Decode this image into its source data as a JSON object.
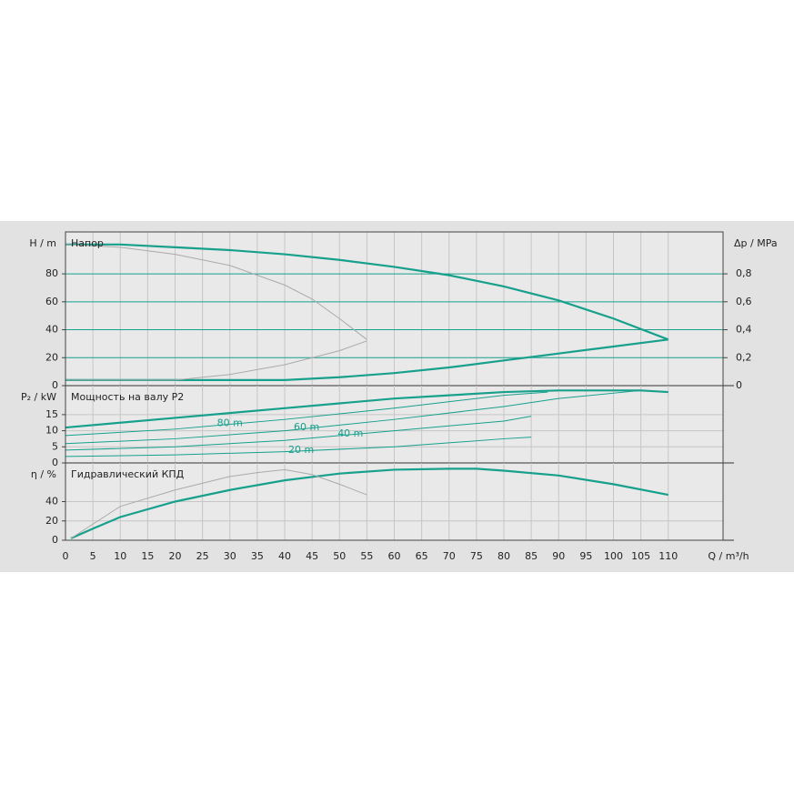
{
  "chart_data": [
    {
      "type": "line",
      "title": "Напор",
      "ylabel": "H / m",
      "y2label": "Δp / MPa",
      "xlim": [
        0,
        120
      ],
      "ylim": [
        0,
        110
      ],
      "yticks": [
        0,
        20,
        40,
        60,
        80
      ],
      "y2lim": [
        0,
        1.1
      ],
      "y2ticks": [
        0,
        {
          "value": 0.2,
          "label": "0,2"
        },
        {
          "value": 0.4,
          "label": "0,4"
        },
        {
          "value": 0.6,
          "label": "0,6"
        },
        {
          "value": 0.8,
          "label": "0,8"
        }
      ],
      "grid": true,
      "grid_color": "#17a08c",
      "series": [
        {
          "color": "#17a08c",
          "line_width": 2.2,
          "x": [
            0,
            10,
            20,
            30,
            40,
            50,
            60,
            65,
            70,
            80,
            90,
            100,
            110
          ],
          "values": [
            101,
            101,
            99,
            97,
            94,
            90,
            85,
            82,
            79,
            71,
            61,
            48,
            33
          ]
        },
        {
          "color": "#17a08c",
          "line_width": 2.2,
          "x": [
            0,
            20,
            40,
            50,
            60,
            70,
            80,
            90,
            100,
            110
          ],
          "values": [
            4,
            4,
            4,
            6,
            9,
            13,
            18,
            23,
            28,
            33
          ]
        },
        {
          "color": "#aaaaaa",
          "line_width": 1,
          "x": [
            0,
            10,
            20,
            30,
            40,
            45,
            50,
            55
          ],
          "values": [
            101,
            99,
            94,
            86,
            72,
            62,
            48,
            33
          ]
        },
        {
          "color": "#aaaaaa",
          "line_width": 1,
          "x": [
            0,
            20,
            30,
            40,
            50,
            55
          ],
          "values": [
            4,
            4,
            8,
            15,
            25,
            32
          ]
        }
      ]
    },
    {
      "type": "line",
      "title": "Мощность на валу P2",
      "ylabel": "P₂ / kW",
      "xlim": [
        0,
        120
      ],
      "ylim": [
        0,
        24
      ],
      "yticks": [
        0,
        5,
        10,
        15
      ],
      "grid": true,
      "series": [
        {
          "color": "#17a08c",
          "line_width": 2.2,
          "x": [
            0,
            10,
            20,
            30,
            40,
            50,
            60,
            70,
            80,
            90,
            105,
            110
          ],
          "values": [
            11,
            12.5,
            14,
            15.5,
            17,
            18.5,
            20,
            21,
            22,
            22.5,
            22.5,
            22
          ]
        },
        {
          "name": "80 m",
          "color": "#17a08c",
          "line_width": 1,
          "x": [
            0,
            20,
            40,
            60,
            80,
            88
          ],
          "values": [
            8.5,
            10.5,
            13.5,
            17,
            21,
            22
          ]
        },
        {
          "name": "60 m",
          "color": "#17a08c",
          "line_width": 1,
          "x": [
            0,
            20,
            40,
            60,
            80,
            90,
            105
          ],
          "values": [
            6,
            7.5,
            10,
            13.5,
            17.5,
            20,
            22.5
          ]
        },
        {
          "name": "40 m",
          "color": "#17a08c",
          "line_width": 1,
          "x": [
            0,
            20,
            40,
            60,
            80,
            85
          ],
          "values": [
            4,
            5,
            7,
            10,
            13,
            14.5
          ]
        },
        {
          "name": "20 m",
          "color": "#17a08c",
          "line_width": 1,
          "x": [
            0,
            20,
            40,
            60,
            80,
            85
          ],
          "values": [
            2,
            2.5,
            3.5,
            5,
            7.5,
            8
          ]
        }
      ]
    },
    {
      "type": "line",
      "title": "Гидравлический КПД",
      "ylabel": "η / %",
      "xlabel": "Q / m³/h",
      "xlim": [
        0,
        120
      ],
      "ylim": [
        0,
        80
      ],
      "yticks": [
        0,
        20,
        40
      ],
      "grid": true,
      "xticks": [
        0,
        5,
        10,
        15,
        20,
        25,
        30,
        35,
        40,
        45,
        50,
        55,
        60,
        65,
        70,
        75,
        80,
        85,
        90,
        95,
        100,
        105,
        110
      ],
      "series": [
        {
          "color": "#17a08c",
          "line_width": 2.2,
          "x": [
            1,
            5,
            10,
            20,
            30,
            40,
            50,
            60,
            70,
            75,
            80,
            90,
            100,
            110
          ],
          "values": [
            2,
            12,
            24,
            40,
            52,
            62,
            69,
            73,
            74,
            74,
            72,
            67,
            58,
            47
          ]
        },
        {
          "color": "#aaaaaa",
          "line_width": 1,
          "x": [
            1,
            10,
            20,
            30,
            35,
            40,
            45,
            50,
            55
          ],
          "values": [
            2,
            35,
            52,
            66,
            70,
            73,
            68,
            58,
            47
          ]
        }
      ]
    }
  ]
}
